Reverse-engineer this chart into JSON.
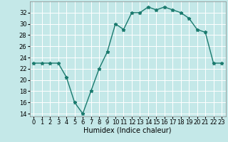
{
  "xlabel": "Humidex (Indice chaleur)",
  "x": [
    0,
    1,
    2,
    3,
    4,
    5,
    6,
    7,
    8,
    9,
    10,
    11,
    12,
    13,
    14,
    15,
    16,
    17,
    18,
    19,
    20,
    21,
    22,
    23
  ],
  "y": [
    23,
    23,
    23,
    23,
    20.5,
    16,
    14,
    18,
    22,
    25,
    30,
    29,
    32,
    32,
    33,
    32.5,
    33,
    32.5,
    32,
    31,
    29,
    28.5,
    23,
    23
  ],
  "line_color": "#1a7a6e",
  "bg_color": "#c4e8e8",
  "grid_color": "#ffffff",
  "ylim": [
    13.5,
    34
  ],
  "yticks": [
    14,
    16,
    18,
    20,
    22,
    24,
    26,
    28,
    30,
    32
  ],
  "xlim": [
    -0.5,
    23.5
  ],
  "marker": "*",
  "linewidth": 1.0,
  "markersize": 3.5,
  "label_fontsize": 7,
  "tick_fontsize": 6
}
